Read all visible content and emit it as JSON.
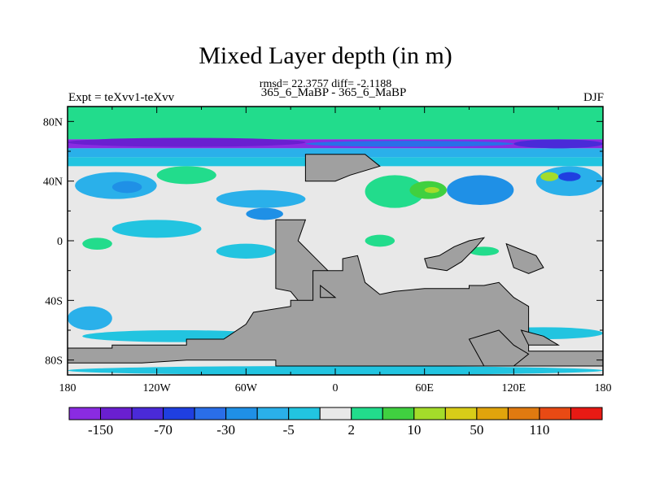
{
  "chart_data": {
    "type": "heatmap",
    "title": "Mixed Layer depth (in m)",
    "stats_line": "rmsd= 22.3757 diff= -2.1188",
    "subtitle": "365_6_MaBP - 365_6_MaBP",
    "left_label": "Expt = teXvv1-teXvv",
    "right_label": "DJF",
    "xlim": [
      -180,
      180
    ],
    "ylim": [
      -90,
      90
    ],
    "x_ticks": [
      {
        "value": -180,
        "label": "180"
      },
      {
        "value": -120,
        "label": "120W"
      },
      {
        "value": -60,
        "label": "60W"
      },
      {
        "value": 0,
        "label": "0"
      },
      {
        "value": 60,
        "label": "60E"
      },
      {
        "value": 120,
        "label": "120E"
      },
      {
        "value": 180,
        "label": "180"
      }
    ],
    "y_ticks": [
      {
        "value": 80,
        "label": "80N"
      },
      {
        "value": 40,
        "label": "40N"
      },
      {
        "value": 0,
        "label": "0"
      },
      {
        "value": -40,
        "label": "40S"
      },
      {
        "value": -80,
        "label": "80S"
      }
    ],
    "colorbar": {
      "colors": [
        "#8a2be2",
        "#6a1fd0",
        "#4a2ad8",
        "#1f3fe0",
        "#2a6ee8",
        "#1f90e6",
        "#2ab0ea",
        "#22c4e0",
        "#e8e8e8",
        "#22dc8c",
        "#40d040",
        "#a4dc2a",
        "#d8cc18",
        "#e0a40c",
        "#e07a10",
        "#e84a14",
        "#e81a14"
      ],
      "labels": [
        {
          "after_index": 0,
          "text": "-150"
        },
        {
          "after_index": 2,
          "text": "-70"
        },
        {
          "after_index": 4,
          "text": "-30"
        },
        {
          "after_index": 6,
          "text": "-5"
        },
        {
          "after_index": 8,
          "text": "2"
        },
        {
          "after_index": 10,
          "text": "10"
        },
        {
          "after_index": 12,
          "text": "50"
        },
        {
          "after_index": 14,
          "text": "110"
        }
      ]
    },
    "land_color": "#a0a0a0",
    "bands": [
      {
        "lat": [
          78,
          90
        ],
        "level": 9
      },
      {
        "lat": [
          68,
          78
        ],
        "level": 9
      },
      {
        "lat": [
          62,
          68
        ],
        "level": 0
      },
      {
        "lat": [
          56,
          62
        ],
        "level": 6
      },
      {
        "lat": [
          50,
          56
        ],
        "level": 7
      }
    ],
    "patches": [
      {
        "lon": [
          -180,
          -20
        ],
        "lat": [
          63,
          69
        ],
        "level": 1
      },
      {
        "lon": [
          -20,
          120
        ],
        "lat": [
          63,
          67
        ],
        "level": 4
      },
      {
        "lon": [
          120,
          180
        ],
        "lat": [
          62,
          68
        ],
        "level": 2
      },
      {
        "lon": [
          -175,
          -120
        ],
        "lat": [
          28,
          46
        ],
        "level": 6
      },
      {
        "lon": [
          -150,
          -130
        ],
        "lat": [
          32,
          40
        ],
        "level": 5
      },
      {
        "lon": [
          -120,
          -80
        ],
        "lat": [
          38,
          50
        ],
        "level": 9
      },
      {
        "lon": [
          -80,
          -20
        ],
        "lat": [
          22,
          34
        ],
        "level": 6
      },
      {
        "lon": [
          -60,
          -35
        ],
        "lat": [
          14,
          22
        ],
        "level": 5
      },
      {
        "lon": [
          -150,
          -90
        ],
        "lat": [
          2,
          14
        ],
        "level": 7
      },
      {
        "lon": [
          -170,
          -150
        ],
        "lat": [
          -6,
          2
        ],
        "level": 9
      },
      {
        "lon": [
          -80,
          -40
        ],
        "lat": [
          -12,
          -2
        ],
        "level": 7
      },
      {
        "lon": [
          20,
          60
        ],
        "lat": [
          22,
          44
        ],
        "level": 9
      },
      {
        "lon": [
          50,
          75
        ],
        "lat": [
          28,
          40
        ],
        "level": 10
      },
      {
        "lon": [
          60,
          70
        ],
        "lat": [
          32,
          36
        ],
        "level": 11
      },
      {
        "lon": [
          75,
          120
        ],
        "lat": [
          24,
          44
        ],
        "level": 5
      },
      {
        "lon": [
          135,
          180
        ],
        "lat": [
          30,
          50
        ],
        "level": 6
      },
      {
        "lon": [
          138,
          150
        ],
        "lat": [
          40,
          46
        ],
        "level": 11
      },
      {
        "lon": [
          150,
          165
        ],
        "lat": [
          40,
          46
        ],
        "level": 3
      },
      {
        "lon": [
          -180,
          -150
        ],
        "lat": [
          -60,
          -44
        ],
        "level": 6
      },
      {
        "lon": [
          -170,
          -40
        ],
        "lat": [
          -68,
          -60
        ],
        "level": 7
      },
      {
        "lon": [
          100,
          180
        ],
        "lat": [
          -66,
          -58
        ],
        "level": 7
      },
      {
        "lon": [
          -180,
          180
        ],
        "lat": [
          -90,
          -84
        ],
        "level": 7
      },
      {
        "lon": [
          20,
          40
        ],
        "lat": [
          -4,
          4
        ],
        "level": 9
      },
      {
        "lon": [
          90,
          110
        ],
        "lat": [
          -10,
          -4
        ],
        "level": 9
      }
    ],
    "land": [
      [
        [
          -20,
          40
        ],
        [
          -20,
          58
        ],
        [
          20,
          58
        ],
        [
          30,
          50
        ],
        [
          10,
          44
        ],
        [
          0,
          40
        ]
      ],
      [
        [
          -40,
          14
        ],
        [
          -40,
          -32
        ],
        [
          -30,
          -34
        ],
        [
          -20,
          -46
        ],
        [
          -10,
          -44
        ],
        [
          -5,
          -20
        ],
        [
          -15,
          -10
        ],
        [
          -25,
          0
        ],
        [
          -20,
          14
        ]
      ],
      [
        [
          5,
          -12
        ],
        [
          5,
          -20
        ],
        [
          -15,
          -20
        ],
        [
          -15,
          -40
        ],
        [
          -30,
          -40
        ],
        [
          -30,
          -44
        ],
        [
          -55,
          -48
        ],
        [
          -60,
          -56
        ],
        [
          -75,
          -66
        ],
        [
          -100,
          -66
        ],
        [
          -100,
          -70
        ],
        [
          -150,
          -70
        ],
        [
          -150,
          -72
        ],
        [
          -180,
          -72
        ],
        [
          -180,
          -82
        ],
        [
          -130,
          -82
        ],
        [
          -100,
          -80
        ],
        [
          -40,
          -80
        ],
        [
          -40,
          -84
        ],
        [
          180,
          -84
        ],
        [
          180,
          -74
        ],
        [
          150,
          -74
        ],
        [
          130,
          -74
        ],
        [
          130,
          -44
        ],
        [
          120,
          -38
        ],
        [
          110,
          -28
        ],
        [
          100,
          -30
        ],
        [
          90,
          -30
        ],
        [
          90,
          -32
        ],
        [
          60,
          -32
        ],
        [
          40,
          -34
        ],
        [
          30,
          -36
        ],
        [
          20,
          -28
        ],
        [
          15,
          -10
        ]
      ],
      [
        [
          110,
          -60
        ],
        [
          120,
          -70
        ],
        [
          130,
          -76
        ],
        [
          120,
          -84
        ],
        [
          100,
          -84
        ],
        [
          90,
          -66
        ]
      ],
      [
        [
          60,
          -12
        ],
        [
          70,
          -10
        ],
        [
          80,
          -4
        ],
        [
          90,
          0
        ],
        [
          100,
          2
        ],
        [
          95,
          -4
        ],
        [
          85,
          -14
        ],
        [
          75,
          -20
        ],
        [
          62,
          -18
        ]
      ],
      [
        [
          115,
          -2
        ],
        [
          125,
          -6
        ],
        [
          135,
          -10
        ],
        [
          140,
          -18
        ],
        [
          130,
          -22
        ],
        [
          120,
          -18
        ]
      ],
      [
        [
          -10,
          -30
        ],
        [
          -5,
          -34
        ],
        [
          0,
          -38
        ],
        [
          -10,
          -38
        ]
      ],
      [
        [
          125,
          -60
        ],
        [
          140,
          -64
        ],
        [
          150,
          -70
        ],
        [
          130,
          -70
        ]
      ]
    ]
  }
}
